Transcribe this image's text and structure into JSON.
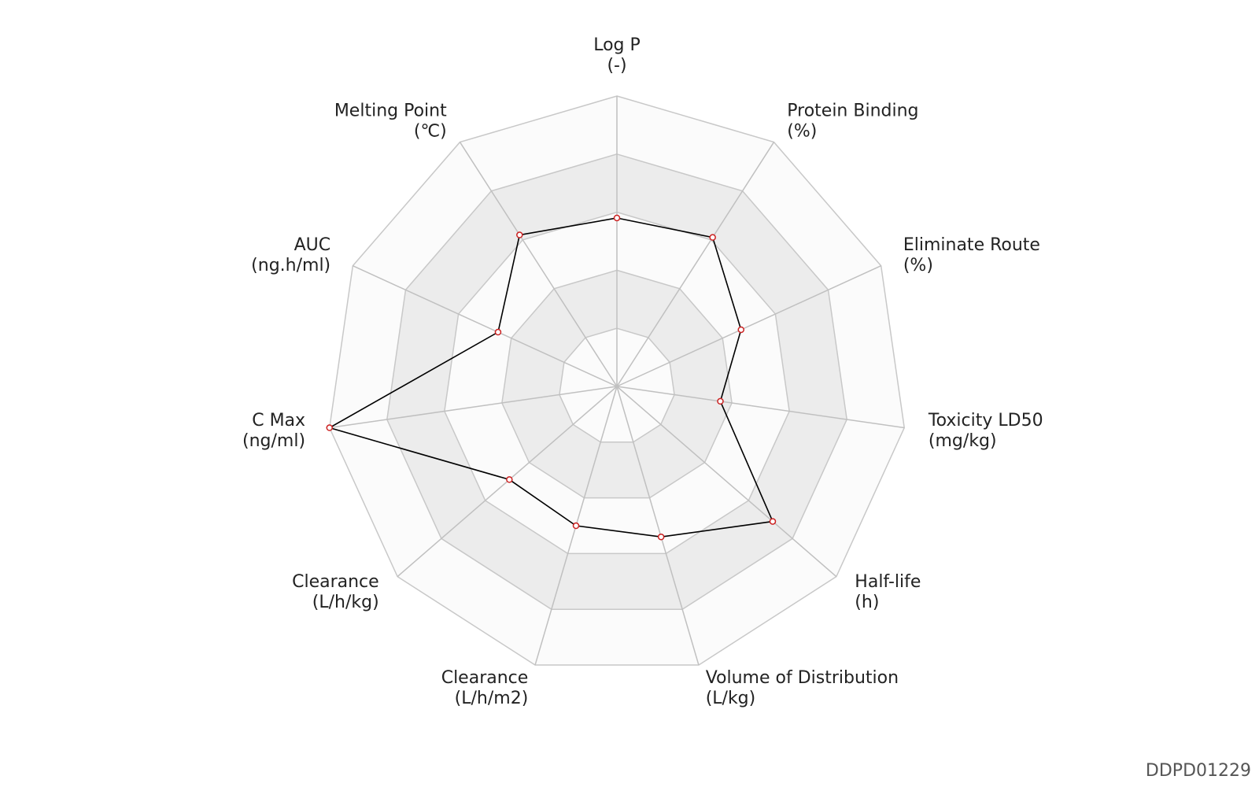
{
  "chart_data": {
    "type": "radar",
    "categories": [
      "Log P",
      "Protein Binding",
      "Eliminate Route",
      "Toxicity LD50",
      "Half-life",
      "Volume of Distribution",
      "Clearance",
      "Clearance",
      "C Max",
      "AUC",
      "Melting Point"
    ],
    "units": [
      "(-)",
      "(%)",
      "(%)",
      "(mg/kg)",
      "(h)",
      "(L/kg)",
      "(L/h/m2)",
      "(L/h/kg)",
      "(ng/ml)",
      "(ng.h/ml)",
      "(℃)"
    ],
    "values": [
      0.58,
      0.61,
      0.47,
      0.36,
      0.71,
      0.54,
      0.5,
      0.49,
      1.0,
      0.45,
      0.62
    ],
    "rlim": [
      0,
      1
    ],
    "rticks": [
      0.2,
      0.4,
      0.6,
      0.8,
      1.0
    ],
    "line_color": "#000000",
    "marker_color": "#cc2222"
  },
  "watermark": "DDPD01229"
}
